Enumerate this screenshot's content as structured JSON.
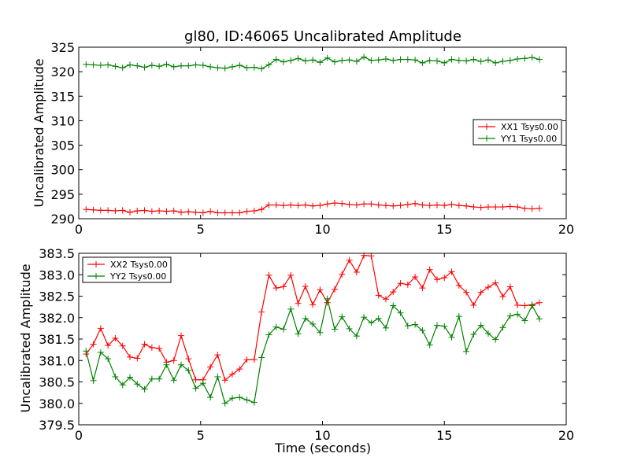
{
  "chart_data": [
    {
      "type": "line",
      "title": "gl80, ID:46065 Uncalibrated Amplitude",
      "xlabel": "",
      "ylabel": "Uncalibrated Amplitude",
      "xlim": [
        0,
        20
      ],
      "ylim": [
        290,
        325
      ],
      "xticks": [
        "0",
        "5",
        "10",
        "15",
        "20"
      ],
      "yticks": [
        "290",
        "295",
        "300",
        "305",
        "310",
        "315",
        "320",
        "325"
      ],
      "grid": false,
      "legend_position": "center-right",
      "x": [
        0.3,
        0.6,
        0.9,
        1.2,
        1.5,
        1.8,
        2.1,
        2.4,
        2.7,
        3.0,
        3.3,
        3.6,
        3.9,
        4.2,
        4.5,
        4.8,
        5.1,
        5.4,
        5.7,
        6.0,
        6.3,
        6.6,
        6.9,
        7.2,
        7.5,
        7.8,
        8.1,
        8.4,
        8.7,
        9.0,
        9.3,
        9.6,
        9.9,
        10.2,
        10.5,
        10.8,
        11.1,
        11.4,
        11.7,
        12.0,
        12.3,
        12.6,
        12.9,
        13.2,
        13.5,
        13.8,
        14.1,
        14.4,
        14.7,
        15.0,
        15.3,
        15.6,
        15.9,
        16.2,
        16.5,
        16.8,
        17.1,
        17.4,
        17.7,
        18.0,
        18.3,
        18.6,
        18.9
      ],
      "series": [
        {
          "name": "XX1 Tsys0.00",
          "color": "#ff0000",
          "values": [
            291.9,
            291.8,
            291.7,
            291.7,
            291.6,
            291.7,
            291.3,
            291.6,
            291.7,
            291.5,
            291.6,
            291.5,
            291.6,
            291.3,
            291.4,
            291.3,
            291.2,
            291.5,
            291.2,
            291.2,
            291.2,
            291.2,
            291.5,
            291.6,
            291.9,
            292.8,
            292.8,
            292.7,
            292.8,
            292.7,
            292.8,
            292.6,
            292.7,
            293.0,
            293.2,
            293.1,
            292.9,
            292.8,
            293.0,
            293.0,
            292.8,
            292.7,
            292.6,
            292.7,
            292.9,
            293.1,
            292.8,
            292.7,
            292.8,
            292.7,
            292.9,
            292.7,
            292.6,
            292.4,
            292.3,
            292.4,
            292.4,
            292.4,
            292.5,
            292.4,
            292.1,
            292.0,
            292.1
          ]
        },
        {
          "name": "YY1 Tsys0.00",
          "color": "#008000",
          "values": [
            321.5,
            321.4,
            321.3,
            321.4,
            321.1,
            320.8,
            321.4,
            321.2,
            320.9,
            321.3,
            321.1,
            321.5,
            321.0,
            321.2,
            321.2,
            321.4,
            321.3,
            321.0,
            320.8,
            320.7,
            321.0,
            321.3,
            320.8,
            320.9,
            320.6,
            321.4,
            322.5,
            322.0,
            322.3,
            322.7,
            322.2,
            322.4,
            321.9,
            322.8,
            322.0,
            322.3,
            322.4,
            322.1,
            323.0,
            322.3,
            322.4,
            322.6,
            322.3,
            322.5,
            322.5,
            322.4,
            321.8,
            322.3,
            322.2,
            321.8,
            322.5,
            322.3,
            322.2,
            322.5,
            322.1,
            322.4,
            321.8,
            322.1,
            322.3,
            322.6,
            322.7,
            322.9,
            322.5
          ]
        }
      ]
    },
    {
      "type": "line",
      "title": "",
      "xlabel": "Time (seconds)",
      "ylabel": "Uncalibrated Amplitude",
      "xlim": [
        0,
        20
      ],
      "ylim": [
        379.5,
        383.5
      ],
      "xticks": [
        "0",
        "5",
        "10",
        "15",
        "20"
      ],
      "yticks": [
        "379.5",
        "380.0",
        "380.5",
        "381.0",
        "381.5",
        "382.0",
        "382.5",
        "383.0",
        "383.5"
      ],
      "grid": false,
      "legend_position": "top-left",
      "x": [
        0.3,
        0.6,
        0.9,
        1.2,
        1.5,
        1.8,
        2.1,
        2.4,
        2.7,
        3.0,
        3.3,
        3.6,
        3.9,
        4.2,
        4.5,
        4.8,
        5.1,
        5.4,
        5.7,
        6.0,
        6.3,
        6.6,
        6.9,
        7.2,
        7.5,
        7.8,
        8.1,
        8.4,
        8.7,
        9.0,
        9.3,
        9.6,
        9.9,
        10.2,
        10.5,
        10.8,
        11.1,
        11.4,
        11.7,
        12.0,
        12.3,
        12.6,
        12.9,
        13.2,
        13.5,
        13.8,
        14.1,
        14.4,
        14.7,
        15.0,
        15.3,
        15.6,
        15.9,
        16.2,
        16.5,
        16.8,
        17.1,
        17.4,
        17.7,
        18.0,
        18.3,
        18.6,
        18.9
      ],
      "series": [
        {
          "name": "XX2 Tsys0.00",
          "color": "#ff0000",
          "values": [
            381.15,
            381.38,
            381.75,
            381.35,
            381.52,
            381.34,
            381.08,
            381.05,
            381.38,
            381.3,
            381.28,
            380.96,
            381.0,
            381.58,
            381.04,
            380.55,
            380.55,
            380.85,
            381.13,
            380.54,
            380.68,
            380.8,
            381.02,
            381.02,
            382.13,
            382.99,
            382.69,
            382.72,
            382.99,
            382.33,
            382.73,
            382.3,
            382.65,
            382.35,
            382.66,
            383.01,
            383.34,
            383.06,
            383.45,
            383.44,
            382.52,
            382.43,
            382.6,
            382.8,
            382.77,
            382.95,
            382.69,
            383.12,
            382.89,
            382.93,
            383.07,
            382.75,
            382.59,
            382.29,
            382.59,
            382.71,
            382.81,
            382.49,
            382.72,
            382.29,
            382.28,
            382.3,
            382.35
          ]
        },
        {
          "name": "YY2 Tsys0.00",
          "color": "#008000",
          "values": [
            381.22,
            380.53,
            381.19,
            381.04,
            380.62,
            380.43,
            380.61,
            380.45,
            380.33,
            380.57,
            380.57,
            380.9,
            380.54,
            380.9,
            380.77,
            380.35,
            380.47,
            380.14,
            380.62,
            380.0,
            380.12,
            380.14,
            380.08,
            380.02,
            381.07,
            381.6,
            381.78,
            381.73,
            382.2,
            381.62,
            381.98,
            381.85,
            381.65,
            382.44,
            381.73,
            382.02,
            381.74,
            381.57,
            382.01,
            381.88,
            381.98,
            381.76,
            382.28,
            382.11,
            381.81,
            381.84,
            381.7,
            381.36,
            381.82,
            381.8,
            381.54,
            382.03,
            381.21,
            381.61,
            381.82,
            381.63,
            381.49,
            381.77,
            382.04,
            382.08,
            381.93,
            382.28,
            381.97
          ]
        }
      ]
    }
  ]
}
